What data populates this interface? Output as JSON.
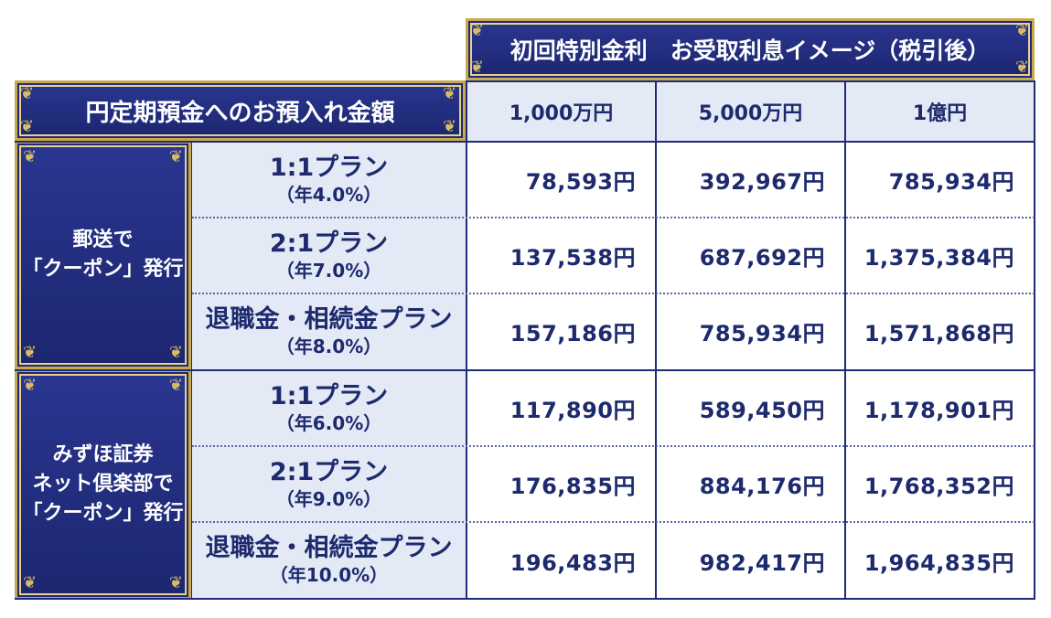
{
  "header": {
    "top_title": "初回特別金利　お受取利息イメージ（税引後）",
    "left_title": "円定期預金へのお預入れ金額",
    "amounts": [
      "1,000万円",
      "5,000万円",
      "1億円"
    ]
  },
  "groups": [
    {
      "label_lines": [
        "郵送で",
        "「クーポン」発行"
      ],
      "plans": [
        {
          "name": "1:1プラン",
          "rate": "（年4.0%）",
          "values": [
            "78,593円",
            "392,967円",
            "785,934円"
          ]
        },
        {
          "name": "2:1プラン",
          "rate": "（年7.0%）",
          "values": [
            "137,538円",
            "687,692円",
            "1,375,384円"
          ]
        },
        {
          "name": "退職金・相続金プラン",
          "rate": "（年8.0%）",
          "values": [
            "157,186円",
            "785,934円",
            "1,571,868円"
          ]
        }
      ]
    },
    {
      "label_lines": [
        "みずほ証券",
        "ネット倶楽部で",
        "「クーポン」発行"
      ],
      "plans": [
        {
          "name": "1:1プラン",
          "rate": "（年6.0%）",
          "values": [
            "117,890円",
            "589,450円",
            "1,178,901円"
          ]
        },
        {
          "name": "2:1プラン",
          "rate": "（年9.0%）",
          "values": [
            "176,835円",
            "884,176円",
            "1,768,352円"
          ]
        },
        {
          "name": "退職金・相続金プラン",
          "rate": "（年10.0%）",
          "values": [
            "196,483円",
            "982,417円",
            "1,964,835円"
          ]
        }
      ]
    }
  ],
  "colors": {
    "navy": "#1f2a78",
    "gold": "#c9a94e",
    "light_row": "#e4e9f6",
    "text": "#1d2a6e"
  }
}
